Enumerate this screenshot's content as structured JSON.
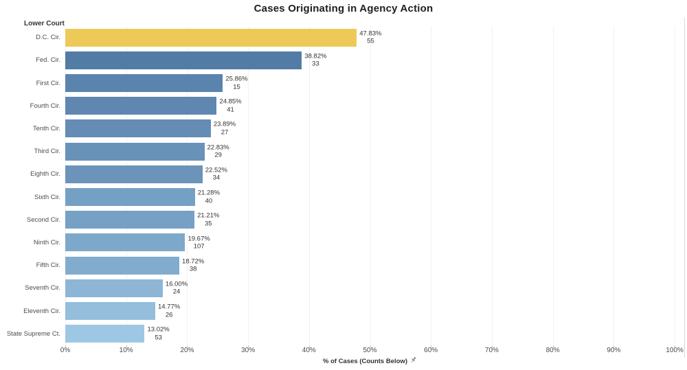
{
  "title": "Cases Originating in Agency Action",
  "column_header": "Lower Court",
  "axis": {
    "label": "% of Cases (Counts Below)",
    "tick_labels": [
      "0%",
      "10%",
      "20%",
      "30%",
      "40%",
      "50%",
      "60%",
      "70%",
      "80%",
      "90%",
      "100%"
    ]
  },
  "colors": {
    "highlight_gold": "#EDC958",
    "blue_dark": "#527CA6",
    "blue_light": "#9EC7E4",
    "gridline": "#F1F1F1",
    "border": "#D8D8D8"
  },
  "chart_data": {
    "type": "bar",
    "orientation": "horizontal",
    "title": "Cases Originating in Agency Action",
    "xlabel": "% of Cases (Counts Below)",
    "ylabel": "Lower Court",
    "xlim": [
      0,
      100
    ],
    "x_tick_step_percent": 10,
    "grid": true,
    "categories": [
      "D.C. Cir.",
      "Fed. Cir.",
      "First Cir.",
      "Fourth Cir.",
      "Tenth Cir.",
      "Third Cir.",
      "Eighth Cir.",
      "Sixth Cir.",
      "Second Cir.",
      "Ninth Cir.",
      "Fifth Cir.",
      "Seventh Cir.",
      "Eleventh Cir.",
      "State Supreme Ct."
    ],
    "series": [
      {
        "name": "% of Cases",
        "values": [
          47.83,
          38.82,
          25.86,
          24.85,
          23.89,
          22.83,
          22.52,
          21.28,
          21.21,
          19.67,
          18.72,
          16.0,
          14.77,
          13.02
        ]
      },
      {
        "name": "Count",
        "values": [
          55,
          33,
          15,
          41,
          27,
          29,
          34,
          40,
          35,
          107,
          38,
          24,
          26,
          53
        ]
      }
    ],
    "rows": [
      {
        "label": "D.C. Cir.",
        "pct": 47.83,
        "pct_label": "47.83%",
        "count": "55",
        "color": "#EDC958"
      },
      {
        "label": "Fed. Cir.",
        "pct": 38.82,
        "pct_label": "38.82%",
        "count": "33",
        "color": "#527CA6"
      },
      {
        "label": "First Cir.",
        "pct": 25.86,
        "pct_label": "25.86%",
        "count": "15",
        "color": "#5A83AD"
      },
      {
        "label": "Fourth Cir.",
        "pct": 24.85,
        "pct_label": "24.85%",
        "count": "41",
        "color": "#5F87B0"
      },
      {
        "label": "Tenth Cir.",
        "pct": 23.89,
        "pct_label": "23.89%",
        "count": "27",
        "color": "#648CB4"
      },
      {
        "label": "Third Cir.",
        "pct": 22.83,
        "pct_label": "22.83%",
        "count": "29",
        "color": "#6992B8"
      },
      {
        "label": "Eighth Cir.",
        "pct": 22.52,
        "pct_label": "22.52%",
        "count": "34",
        "color": "#6C94BA"
      },
      {
        "label": "Sixth Cir.",
        "pct": 21.28,
        "pct_label": "21.28%",
        "count": "40",
        "color": "#74A0C4"
      },
      {
        "label": "Second Cir.",
        "pct": 21.21,
        "pct_label": "21.21%",
        "count": "35",
        "color": "#76A1C5"
      },
      {
        "label": "Ninth Cir.",
        "pct": 19.67,
        "pct_label": "19.67%",
        "count": "107",
        "color": "#7DA8CA"
      },
      {
        "label": "Fifth Cir.",
        "pct": 18.72,
        "pct_label": "18.72%",
        "count": "38",
        "color": "#82ACCE"
      },
      {
        "label": "Seventh Cir.",
        "pct": 16.0,
        "pct_label": "16.00%",
        "count": "24",
        "color": "#8DB6D6"
      },
      {
        "label": "Eleventh Cir.",
        "pct": 14.77,
        "pct_label": "14.77%",
        "count": "26",
        "color": "#95BDDC"
      },
      {
        "label": "State Supreme Ct.",
        "pct": 13.02,
        "pct_label": "13.02%",
        "count": "53",
        "color": "#9EC7E4"
      }
    ]
  }
}
